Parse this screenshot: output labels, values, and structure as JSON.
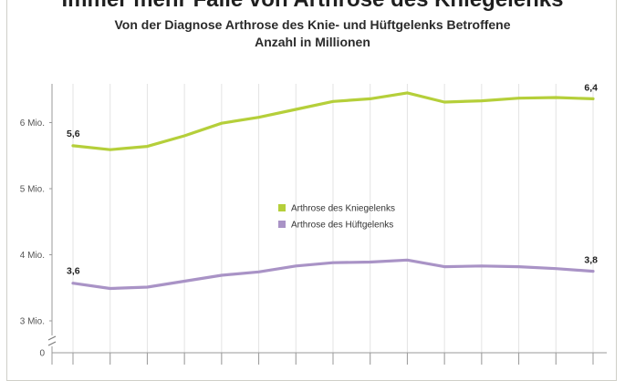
{
  "chart_data": {
    "type": "line",
    "title": "Immer mehr Fälle von Arthrose des Kniegelenks",
    "subtitle_line1": "Von der Diagnose Arthrose des Knie- und Hüftgelenks Betroffene",
    "subtitle_line2": "Anzahl in Millionen",
    "yticks": [
      {
        "value": 3,
        "label": "3 Mio."
      },
      {
        "value": 4,
        "label": "4 Mio."
      },
      {
        "value": 5,
        "label": "5 Mio."
      },
      {
        "value": 6,
        "label": "6 Mio."
      }
    ],
    "ylim": [
      2.5,
      6.7
    ],
    "y_axis_break": true,
    "y_zero_label": "0",
    "grid": "vertical",
    "legend_position": "center",
    "series": [
      {
        "name": "Arthrose des Kniegelenks",
        "color": "#b5cf3a",
        "values": [
          5.65,
          5.59,
          5.64,
          5.8,
          5.99,
          6.08,
          6.2,
          6.32,
          6.36,
          6.45,
          6.31,
          6.33,
          6.37,
          6.38,
          6.36
        ],
        "first_label": "5,6",
        "last_label": "6,4"
      },
      {
        "name": "Arthrose des Hüftgelenks",
        "color": "#a993c6",
        "values": [
          3.57,
          3.49,
          3.51,
          3.6,
          3.69,
          3.74,
          3.83,
          3.88,
          3.89,
          3.92,
          3.82,
          3.83,
          3.82,
          3.79,
          3.75
        ],
        "first_label": "3,6",
        "last_label": "3,8"
      }
    ]
  }
}
